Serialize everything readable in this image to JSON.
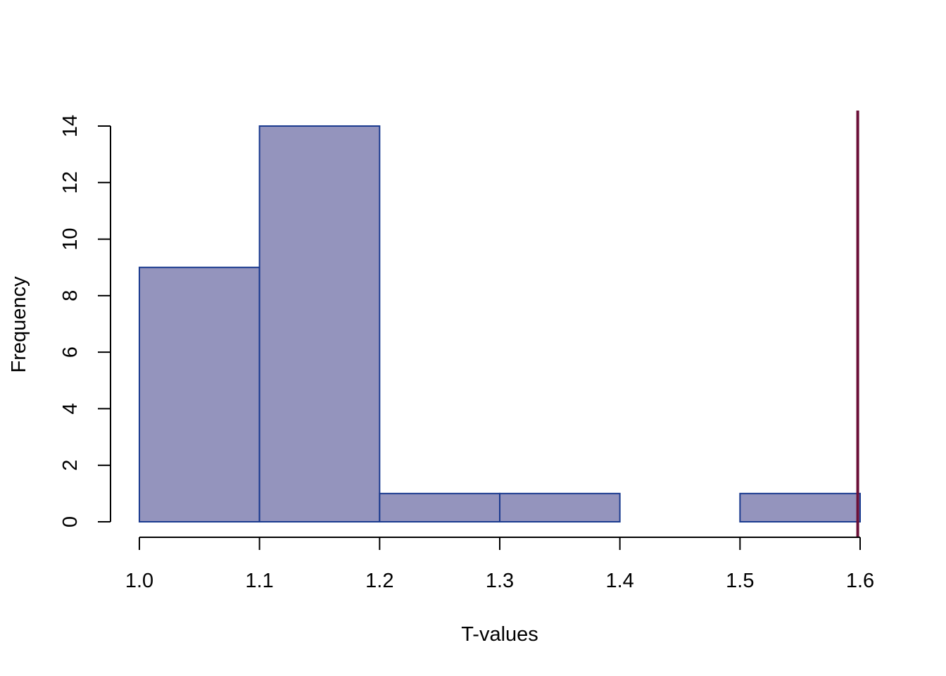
{
  "chart_data": {
    "type": "bar",
    "subtype": "histogram",
    "title": "",
    "xlabel": "T-values",
    "ylabel": "Frequency",
    "bin_edges": [
      1.0,
      1.1,
      1.2,
      1.3,
      1.4,
      1.5,
      1.6
    ],
    "counts": [
      9,
      14,
      1,
      1,
      0,
      1
    ],
    "x_ticks": [
      "1.0",
      "1.1",
      "1.2",
      "1.3",
      "1.4",
      "1.5",
      "1.6"
    ],
    "y_ticks": [
      "0",
      "2",
      "4",
      "6",
      "8",
      "10",
      "12",
      "14"
    ],
    "xlim": [
      1.0,
      1.6
    ],
    "ylim": [
      0,
      14
    ],
    "reference_line": {
      "orientation": "vertical",
      "x": 1.598,
      "color": "#6b1038"
    },
    "bar_fill": "#9494bd",
    "bar_stroke": "#1a3a8f",
    "grid": false,
    "legend": "none"
  }
}
